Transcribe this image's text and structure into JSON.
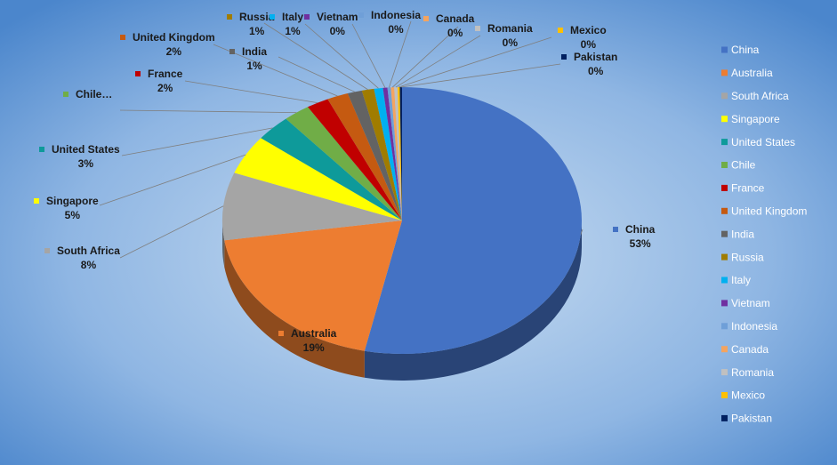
{
  "chart_data": {
    "type": "pie3d",
    "categories": [
      "China",
      "Australia",
      "South Africa",
      "Singapore",
      "United States",
      "Chile",
      "France",
      "United Kingdom",
      "India",
      "Russia",
      "Italy",
      "Vietnam",
      "Indonesia",
      "Canada",
      "Romania",
      "Mexico",
      "Pakistan"
    ],
    "values": [
      53.4,
      19.3,
      8.2,
      4.8,
      3.2,
      2.4,
      2.0,
      1.9,
      1.3,
      1.1,
      0.8,
      0.4,
      0.3,
      0.3,
      0.3,
      0.2,
      0.2
    ],
    "value_labels": [
      "53%",
      "19%",
      "8%",
      "5%",
      "3%",
      null,
      "2%",
      "2%",
      "1%",
      "1%",
      "1%",
      "0%",
      "0%",
      "0%",
      "0%",
      "0%",
      "0%"
    ],
    "data_labels": [
      "China",
      "Australia",
      "South Africa",
      "Singapore",
      "United States",
      "Chile…",
      "France",
      "United Kingdom",
      "India",
      "Russia",
      "Italy",
      "Vietnam",
      "Indonesia",
      "Canada",
      "Romania",
      "Mexico",
      "Pakistan"
    ],
    "colors": [
      "#4472c4",
      "#ed7d31",
      "#a5a5a5",
      "#ffff00",
      "#0e9a9a",
      "#70ad47",
      "#c00000",
      "#c55a11",
      "#636363",
      "#a07c00",
      "#00b0f0",
      "#7030a0",
      "#6f9fd8",
      "#f4a460",
      "#c0c0c0",
      "#ffc000",
      "#002060"
    ],
    "legend": "right"
  }
}
